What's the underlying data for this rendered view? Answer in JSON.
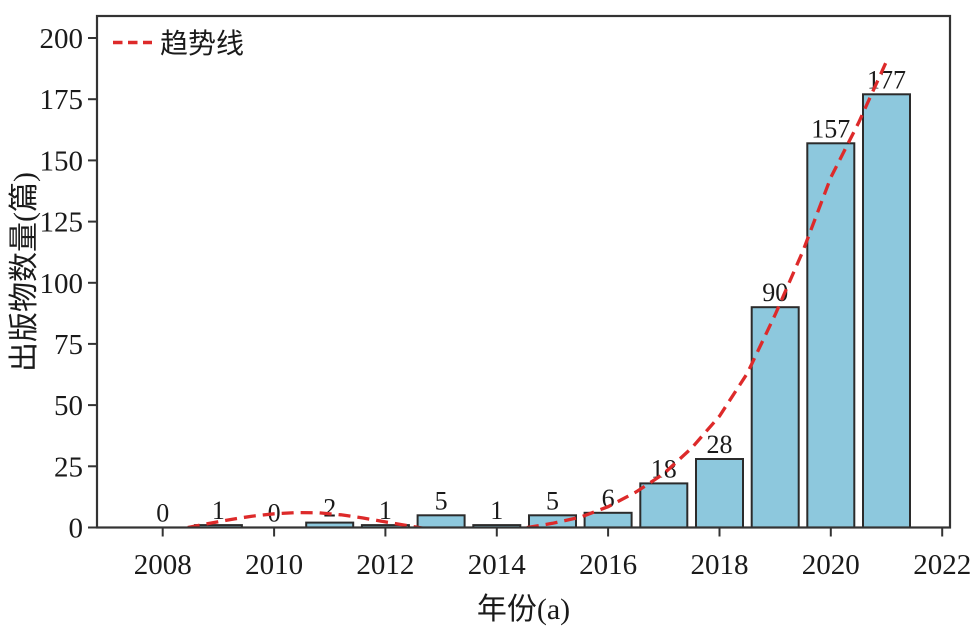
{
  "chart_data": {
    "type": "bar",
    "title": "",
    "xlabel": "年份(a)",
    "ylabel": "出版物数量(篇)",
    "categories": [
      "2008",
      "2009",
      "2010",
      "2011",
      "2012",
      "2013",
      "2014",
      "2015",
      "2016",
      "2017",
      "2018",
      "2019",
      "2020",
      "2021"
    ],
    "values": [
      0,
      1,
      0,
      2,
      1,
      5,
      1,
      5,
      6,
      18,
      28,
      90,
      157,
      177
    ],
    "bar_labels": [
      "0",
      "1",
      "0",
      "2",
      "1",
      "5",
      "1",
      "5",
      "6",
      "18",
      "28",
      "90",
      "157",
      "177"
    ],
    "x_ticks": [
      2008,
      2010,
      2012,
      2014,
      2016,
      2018,
      2020,
      2022
    ],
    "y_ticks": [
      0,
      25,
      50,
      75,
      100,
      125,
      150,
      175,
      200
    ],
    "xlim": [
      2006.82,
      2022.14
    ],
    "ylim": [
      0,
      209
    ],
    "grid": "off",
    "legend_position": "upper-left",
    "legend": [
      {
        "label": "趋势线",
        "marker": "dashed-line",
        "color": "#dd2a2a"
      }
    ],
    "series": [
      {
        "name": "出版物数量",
        "type": "bar",
        "color": "#8dc8dd",
        "edge_color": "#2b2b2b",
        "values": [
          0,
          1,
          0,
          2,
          1,
          5,
          1,
          5,
          6,
          18,
          28,
          90,
          157,
          177
        ]
      },
      {
        "name": "趋势线",
        "type": "line",
        "style": "dashed",
        "color": "#dd2a2a",
        "points": [
          [
            2008.45,
            0
          ],
          [
            2008.8,
            1.5
          ],
          [
            2009.2,
            3.2
          ],
          [
            2009.6,
            4.6
          ],
          [
            2010.0,
            5.6
          ],
          [
            2010.4,
            6.1
          ],
          [
            2010.8,
            6.0
          ],
          [
            2011.2,
            5.2
          ],
          [
            2011.6,
            3.9
          ],
          [
            2012.0,
            2.3
          ],
          [
            2012.6,
            0
          ],
          [
            2013.0,
            -1.5
          ],
          [
            2013.6,
            -2.2
          ],
          [
            2014.2,
            -1.0
          ],
          [
            2014.55,
            0
          ],
          [
            2015.0,
            1.7
          ],
          [
            2015.5,
            4.2
          ],
          [
            2016.0,
            8.5
          ],
          [
            2016.5,
            14.5
          ],
          [
            2017.0,
            22
          ],
          [
            2017.5,
            32.5
          ],
          [
            2018.0,
            45.5
          ],
          [
            2018.5,
            63
          ],
          [
            2019.0,
            87
          ],
          [
            2019.5,
            113
          ],
          [
            2020.0,
            143
          ],
          [
            2020.5,
            165.5
          ],
          [
            2021.0,
            190.5
          ]
        ]
      }
    ],
    "colors": {
      "bar_fill": "#8dc8dd",
      "bar_edge": "#2b2b2b",
      "axis": "#333333",
      "trend": "#dd2a2a",
      "text": "#1a1a1a",
      "background": "#ffffff"
    }
  }
}
